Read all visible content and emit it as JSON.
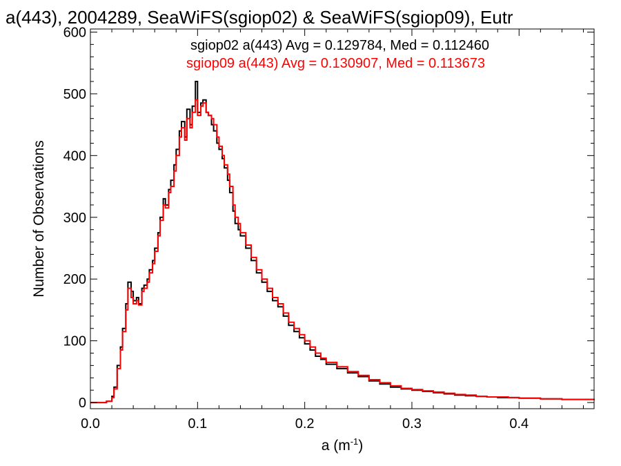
{
  "chart_data": {
    "type": "line",
    "title": "a(443), 2004289, SeaWiFS(sgiop02) & SeaWiFS(sgiop09), Eutr",
    "xlabel": "a (m",
    "xlabel_exp": "-1",
    "xlabel_close": ")",
    "ylabel": "Number of Observations",
    "xlim": [
      0.0,
      0.47
    ],
    "ylim": [
      -10,
      605
    ],
    "x_ticks": [
      0.0,
      0.1,
      0.2,
      0.3,
      0.4
    ],
    "x_tick_labels": [
      "0.0",
      "0.1",
      "0.2",
      "0.3",
      "0.4"
    ],
    "y_ticks": [
      0,
      100,
      200,
      300,
      400,
      500,
      600
    ],
    "y_tick_labels": [
      "0",
      "100",
      "200",
      "300",
      "400",
      "500",
      "600"
    ],
    "grid": false,
    "annotations": [
      {
        "text": "sgiop02 a(443) Avg = 0.129784, Med = 0.112460",
        "color": "#000000"
      },
      {
        "text": "sgiop09 a(443) Avg = 0.130907, Med = 0.113673",
        "color": "#ff0000"
      }
    ],
    "series": [
      {
        "color": "#000000",
        "x": [
          0.0,
          0.01,
          0.015,
          0.02,
          0.022,
          0.025,
          0.028,
          0.03,
          0.033,
          0.035,
          0.038,
          0.04,
          0.043,
          0.045,
          0.048,
          0.05,
          0.053,
          0.055,
          0.058,
          0.06,
          0.063,
          0.065,
          0.068,
          0.07,
          0.073,
          0.075,
          0.078,
          0.08,
          0.083,
          0.085,
          0.088,
          0.09,
          0.093,
          0.095,
          0.098,
          0.1,
          0.103,
          0.105,
          0.108,
          0.11,
          0.113,
          0.115,
          0.118,
          0.12,
          0.123,
          0.125,
          0.128,
          0.13,
          0.133,
          0.135,
          0.138,
          0.14,
          0.145,
          0.15,
          0.155,
          0.16,
          0.165,
          0.17,
          0.175,
          0.18,
          0.185,
          0.19,
          0.195,
          0.2,
          0.205,
          0.21,
          0.215,
          0.22,
          0.23,
          0.24,
          0.25,
          0.26,
          0.27,
          0.28,
          0.29,
          0.3,
          0.31,
          0.32,
          0.33,
          0.34,
          0.35,
          0.36,
          0.37,
          0.38,
          0.39,
          0.4,
          0.41,
          0.42,
          0.43,
          0.44,
          0.45,
          0.46,
          0.47
        ],
        "values": [
          0,
          0,
          2,
          10,
          25,
          60,
          90,
          120,
          160,
          195,
          180,
          165,
          170,
          160,
          185,
          190,
          200,
          215,
          230,
          250,
          275,
          300,
          330,
          320,
          345,
          360,
          385,
          410,
          440,
          455,
          430,
          475,
          450,
          480,
          520,
          470,
          485,
          490,
          470,
          465,
          450,
          440,
          420,
          410,
          395,
          380,
          360,
          340,
          310,
          290,
          280,
          270,
          250,
          230,
          210,
          195,
          180,
          165,
          155,
          140,
          125,
          115,
          105,
          95,
          85,
          75,
          70,
          62,
          55,
          48,
          42,
          35,
          30,
          25,
          22,
          20,
          18,
          16,
          14,
          12,
          11,
          10,
          9,
          8,
          8,
          7,
          7,
          6,
          6,
          5,
          5,
          5,
          4
        ]
      },
      {
        "color": "#ff0000",
        "x": [
          0.0,
          0.01,
          0.015,
          0.02,
          0.022,
          0.025,
          0.028,
          0.03,
          0.033,
          0.035,
          0.038,
          0.04,
          0.043,
          0.045,
          0.048,
          0.05,
          0.053,
          0.055,
          0.058,
          0.06,
          0.063,
          0.065,
          0.068,
          0.07,
          0.073,
          0.075,
          0.078,
          0.08,
          0.083,
          0.085,
          0.088,
          0.09,
          0.093,
          0.095,
          0.098,
          0.1,
          0.103,
          0.105,
          0.108,
          0.11,
          0.113,
          0.115,
          0.118,
          0.12,
          0.123,
          0.125,
          0.128,
          0.13,
          0.133,
          0.135,
          0.138,
          0.14,
          0.145,
          0.15,
          0.155,
          0.16,
          0.165,
          0.17,
          0.175,
          0.18,
          0.185,
          0.19,
          0.195,
          0.2,
          0.205,
          0.21,
          0.215,
          0.22,
          0.23,
          0.24,
          0.25,
          0.26,
          0.27,
          0.28,
          0.29,
          0.3,
          0.31,
          0.32,
          0.33,
          0.34,
          0.35,
          0.36,
          0.37,
          0.38,
          0.39,
          0.4,
          0.41,
          0.42,
          0.43,
          0.44,
          0.45,
          0.46,
          0.47
        ],
        "values": [
          0,
          0,
          2,
          8,
          22,
          55,
          85,
          115,
          150,
          185,
          170,
          160,
          165,
          158,
          180,
          185,
          195,
          210,
          225,
          245,
          270,
          295,
          320,
          315,
          340,
          350,
          375,
          400,
          430,
          445,
          425,
          460,
          445,
          470,
          490,
          465,
          480,
          485,
          470,
          465,
          460,
          450,
          430,
          415,
          400,
          385,
          370,
          350,
          320,
          300,
          290,
          275,
          255,
          235,
          215,
          200,
          185,
          170,
          160,
          145,
          130,
          120,
          110,
          100,
          90,
          80,
          72,
          65,
          58,
          50,
          44,
          37,
          32,
          27,
          23,
          21,
          19,
          17,
          15,
          13,
          12,
          10,
          9,
          9,
          8,
          7,
          7,
          6,
          6,
          5,
          5,
          5,
          4
        ]
      }
    ]
  }
}
